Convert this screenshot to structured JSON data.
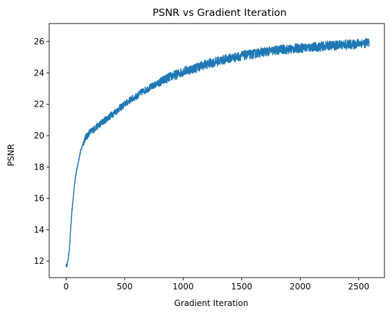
{
  "chart_data": {
    "type": "line",
    "title": "PSNR vs Gradient Iteration",
    "xlabel": "Gradient Iteration",
    "ylabel": "PSNR",
    "xlim": [
      -145,
      2720
    ],
    "ylim": [
      10.95,
      27.15
    ],
    "xticks": [
      0,
      500,
      1000,
      1500,
      2000,
      2500
    ],
    "yticks": [
      12,
      14,
      16,
      18,
      20,
      22,
      24,
      26
    ],
    "grid": false,
    "legend": "none",
    "line_color": "#1f77b4",
    "series": [
      {
        "x": [
          0,
          10,
          20,
          30,
          40,
          50,
          60,
          70,
          80,
          90,
          100,
          120,
          140,
          160,
          180,
          200,
          250,
          300,
          350,
          400,
          450,
          500,
          550,
          600,
          650,
          700,
          750,
          800,
          850,
          900,
          950,
          1000,
          1050,
          1100,
          1150,
          1200,
          1250,
          1300,
          1350,
          1400,
          1450,
          1500,
          1550,
          1600,
          1650,
          1700,
          1750,
          1800,
          1850,
          1900,
          1950,
          2000,
          2050,
          2100,
          2150,
          2200,
          2250,
          2300,
          2350,
          2400,
          2450,
          2500,
          2550,
          2590
        ],
        "y": [
          11.7,
          11.8,
          12.3,
          13.0,
          14.2,
          15.2,
          16.0,
          16.8,
          17.4,
          17.8,
          18.2,
          18.9,
          19.4,
          19.8,
          20.0,
          20.2,
          20.5,
          20.8,
          21.1,
          21.4,
          21.7,
          22.0,
          22.3,
          22.5,
          22.8,
          23.0,
          23.2,
          23.4,
          23.6,
          23.8,
          23.9,
          24.1,
          24.2,
          24.3,
          24.45,
          24.55,
          24.65,
          24.75,
          24.85,
          24.95,
          25.0,
          25.1,
          25.15,
          25.2,
          25.3,
          25.35,
          25.4,
          25.45,
          25.5,
          25.5,
          25.55,
          25.6,
          25.6,
          25.65,
          25.65,
          25.7,
          25.75,
          25.75,
          25.8,
          25.85,
          25.8,
          25.9,
          25.9,
          25.95
        ]
      }
    ]
  }
}
